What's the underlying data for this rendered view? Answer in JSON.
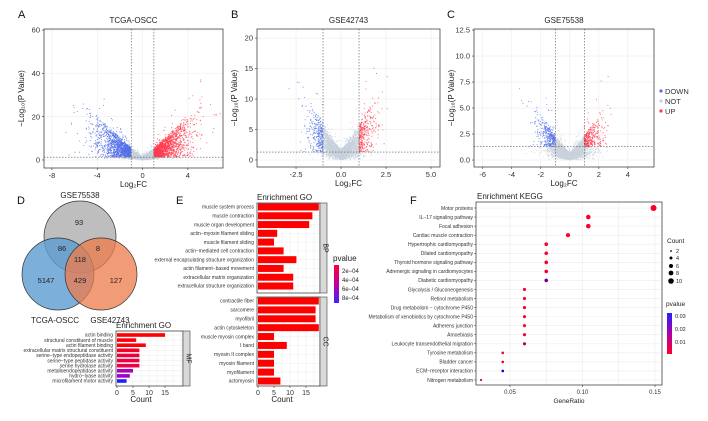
{
  "panel_letters": [
    "A",
    "B",
    "C",
    "D",
    "E",
    "F"
  ],
  "volcano_legend": {
    "items": [
      {
        "label": "DOWN",
        "color": "#5470e8"
      },
      {
        "label": "NOT",
        "color": "#c8d2dc"
      },
      {
        "label": "UP",
        "color": "#ff3b4e"
      }
    ]
  },
  "venn": {
    "sets": [
      "GSE75538",
      "TCGA-OSCC",
      "GSE42743"
    ],
    "colors": [
      "#b3b3b3",
      "#5b9bd0",
      "#ee7b4a"
    ],
    "regions": {
      "GSE75538_only": "93",
      "GSE75538_TCGA": "86",
      "GSE75538_GSE42743": "8",
      "all": "118",
      "TCGA_only": "5147",
      "TCGA_GSE42743": "429",
      "GSE42743_only": "127"
    }
  },
  "chart_data": [
    {
      "panel": "A",
      "type": "scatter",
      "title": "TCGA-OSCC",
      "xlabel": "Log₂FC",
      "ylabel": "−Log₁₀(P Value)",
      "xlim": [
        -8.7,
        7.1
      ],
      "ylim": [
        -3.7,
        60.5
      ],
      "xticks": [
        "-8",
        "-4",
        "0",
        "4"
      ],
      "xtick_values": [
        -8,
        -4,
        0,
        4
      ],
      "yticks": [
        "0",
        "20",
        "40",
        "60"
      ],
      "ytick_values": [
        0,
        20,
        40,
        60
      ],
      "logfc_threshold": 1,
      "p_threshold_line": 1.3,
      "grid": true
    },
    {
      "panel": "B",
      "type": "scatter",
      "title": "GSE42743",
      "xlabel": "Log₂FC",
      "ylabel": "−Log₁₀(P Value)",
      "xlim": [
        -4.67,
        5.5
      ],
      "ylim": [
        -1.15,
        21.5
      ],
      "xticks": [
        "-2.5",
        "0.0",
        "2.5",
        "5.0"
      ],
      "xtick_values": [
        -2.5,
        0,
        2.5,
        5
      ],
      "yticks": [
        "0",
        "5",
        "10",
        "15",
        "20"
      ],
      "ytick_values": [
        0,
        5,
        10,
        15,
        20
      ],
      "logfc_threshold": 1,
      "p_threshold_line": 1.3,
      "grid": true
    },
    {
      "panel": "C",
      "type": "scatter",
      "title": "GSE75538",
      "xlabel": "Log₂FC",
      "ylabel": "−Log₁₀(P Value)",
      "xlim": [
        -6.6,
        5.8
      ],
      "ylim": [
        -0.67,
        12.6
      ],
      "xticks": [
        "-6",
        "-4",
        "-2",
        "0",
        "2",
        "4"
      ],
      "xtick_values": [
        -6,
        -4,
        -2,
        0,
        2,
        4
      ],
      "yticks": [
        "0.0",
        "2.5",
        "5.0",
        "7.5",
        "10.0",
        "12.5"
      ],
      "ytick_values": [
        0,
        2.5,
        5,
        7.5,
        10,
        12.5
      ],
      "logfc_threshold": 1,
      "p_threshold_line": 1.3,
      "grid": true,
      "legend": "right"
    },
    {
      "panel": "E-BP",
      "type": "bar",
      "title": "Enrichment GO",
      "facet": "BP",
      "xlabel": "Count",
      "xticks": [
        "0",
        "5",
        "10",
        "15"
      ],
      "xtick_values": [
        0,
        5,
        10,
        15
      ],
      "xlim": [
        0,
        20
      ],
      "categories": [
        "muscle system process",
        "muscle contraction",
        "muscle organ development",
        "actin−myosin filament sliding",
        "muscle filament sliding",
        "actin−mediated cell contraction",
        "external encapsulating structure organization",
        "actin filament−based movement",
        "extracellular matrix organization",
        "extracellular structure organization"
      ],
      "values": [
        19,
        17,
        16,
        6,
        5,
        8,
        12,
        8,
        11,
        11
      ],
      "pvalues": [
        5e-05,
        5e-05,
        5e-05,
        5e-05,
        5e-05,
        5e-05,
        5e-05,
        5e-05,
        5e-05,
        5e-05
      ]
    },
    {
      "panel": "E-CC",
      "type": "bar",
      "facet": "CC",
      "xlabel": "Count",
      "xticks": [
        "0",
        "5",
        "10",
        "15"
      ],
      "xtick_values": [
        0,
        5,
        10,
        15
      ],
      "xlim": [
        0,
        20
      ],
      "categories": [
        "contractile fiber",
        "sarcomere",
        "myofibril",
        "actin cytoskeleton",
        "muscle myosin complex",
        "I band",
        "myosin II complex",
        "myosin filament",
        "myofilament",
        "actomyosin"
      ],
      "values": [
        19,
        18,
        18,
        19,
        5,
        9,
        5,
        5,
        5,
        7
      ],
      "pvalues": [
        5e-05,
        5e-05,
        5e-05,
        5e-05,
        5e-05,
        5e-05,
        5e-05,
        5e-05,
        5e-05,
        5e-05
      ],
      "legend": {
        "title": "pvalue",
        "labels": [
          "2e−04",
          "4e−04",
          "6e−04",
          "8e−04"
        ]
      }
    },
    {
      "panel": "D-MF",
      "type": "bar",
      "title": "Enrichment GO",
      "facet": "MF",
      "xlabel": "Count",
      "xticks": [
        "0",
        "5",
        "10",
        "15"
      ],
      "xtick_values": [
        0,
        5,
        10,
        15
      ],
      "xlim": [
        0,
        20
      ],
      "categories": [
        "actin binding",
        "structural constituent of muscle",
        "actin filament binding",
        "extracellular matrix structural constituent",
        "serine−type endopeptidase activity",
        "serine−type peptidase activity",
        "serine hydrolase activity",
        "metalloendopeptidase activity",
        "hydro−lyase activity",
        "microfilament motor activity"
      ],
      "values": [
        15,
        6,
        9,
        7,
        7,
        7,
        7,
        5,
        4,
        3
      ],
      "colors": [
        "#ff0000",
        "#fc0010",
        "#fd0008",
        "#f5002a",
        "#f0003a",
        "#ee0044",
        "#ec004a",
        "#b000b8",
        "#a000c8",
        "#2020ff"
      ]
    },
    {
      "panel": "F",
      "type": "scatter",
      "title": "Enrichment KEGG",
      "xlabel": "GeneRatio",
      "xticks": [
        "0.05",
        "0.10",
        "0.15"
      ],
      "xtick_values": [
        0.05,
        0.1,
        0.15
      ],
      "xlim": [
        0.026,
        0.153
      ],
      "categories": [
        "Motor proteins",
        "IL−17 signaling pathway",
        "Focal adhesion",
        "Cardiac muscle contraction",
        "Hypertrophic cardiomyopathy",
        "Dilated cardiomyopathy",
        "Thyroid hormone signaling pathway",
        "Adrenergic signaling in cardiomyocytes",
        "Diabetic cardiomyopathy",
        "Glycolysis / Gluconeogenesis",
        "Retinol metabolism",
        "Drug metabolism − cytochrome P450",
        "Metabolism of xenobiotics by cytochrome P450",
        "Adherens junction",
        "Amoebiasis",
        "Leukocyte transendothelial migration",
        "Tyrosine metabolism",
        "Bladder cancer",
        "ECM−receptor interaction",
        "Nitrogen metabolism"
      ],
      "gene_ratio": [
        0.149,
        0.104,
        0.104,
        0.09,
        0.075,
        0.075,
        0.075,
        0.075,
        0.075,
        0.06,
        0.06,
        0.06,
        0.06,
        0.06,
        0.06,
        0.06,
        0.045,
        0.045,
        0.045,
        0.03
      ],
      "count": [
        10,
        7,
        7,
        6,
        5,
        5,
        5,
        5,
        5,
        4,
        4,
        4,
        4,
        4,
        4,
        4,
        3,
        3,
        3,
        2
      ],
      "pvalue": [
        0.0005,
        0.0005,
        0.0005,
        0.0005,
        0.001,
        0.001,
        0.001,
        0.002,
        0.02,
        0.001,
        0.001,
        0.001,
        0.001,
        0.001,
        0.001,
        0.01,
        0.001,
        0.002,
        0.033,
        0.006
      ],
      "legend": {
        "size_title": "Count",
        "size_labels": [
          "2",
          "4",
          "6",
          "8",
          "10"
        ],
        "color_title": "pvalue",
        "color_labels": [
          "0.03",
          "0.02",
          "0.01"
        ]
      }
    }
  ]
}
